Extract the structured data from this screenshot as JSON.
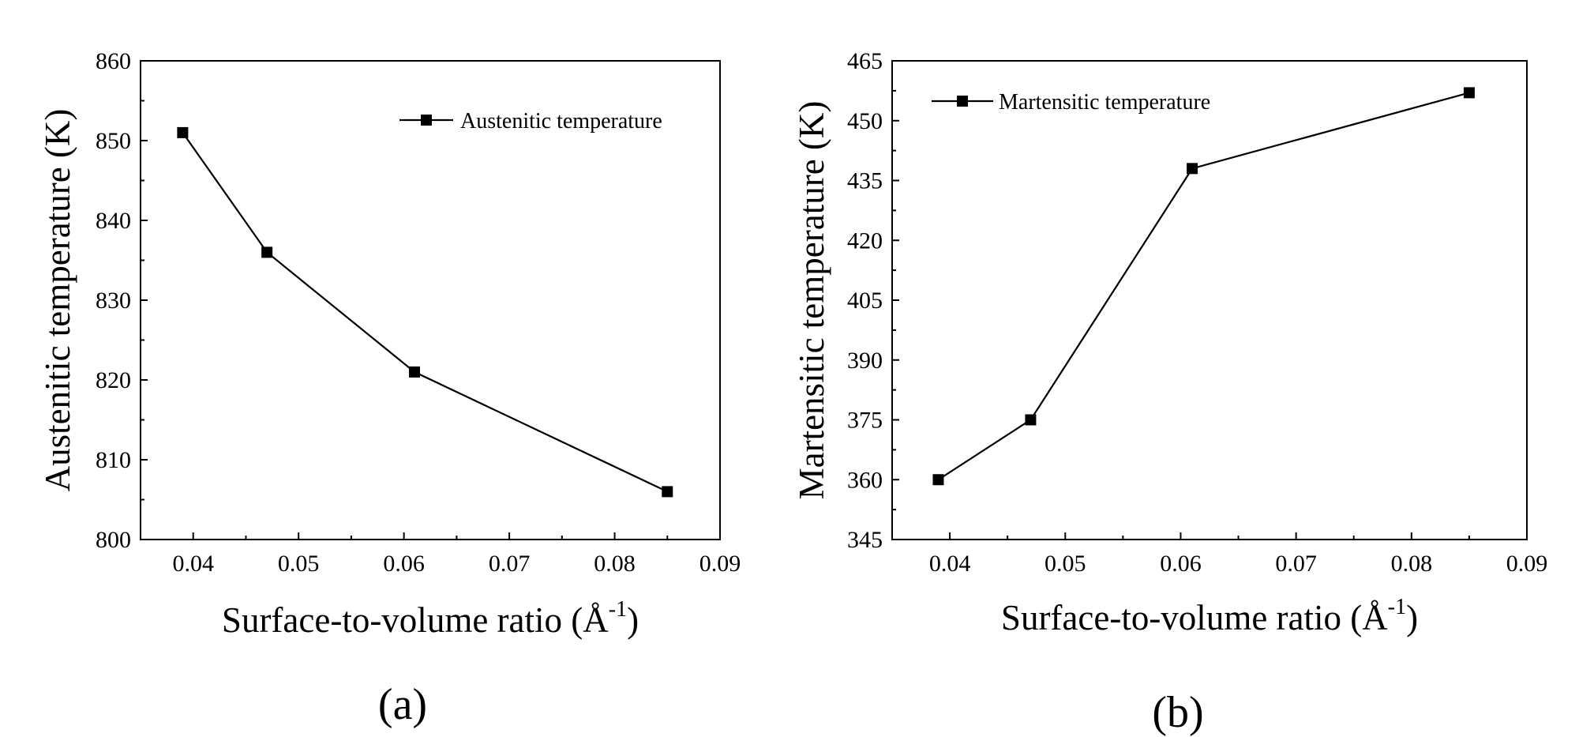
{
  "chart_data": [
    {
      "type": "line",
      "panel_label": "(a)",
      "xlabel": "Surface-to-volume ratio (Å",
      "xlabel_superscript": "-1",
      "xlabel_suffix": ")",
      "ylabel": "Austenitic temperature (K)",
      "xlim": [
        0.035,
        0.09
      ],
      "ylim": [
        800,
        860
      ],
      "xticks": [
        "0.04",
        "0.05",
        "0.06",
        "0.07",
        "0.08",
        "0.09"
      ],
      "yticks": [
        "800",
        "810",
        "820",
        "830",
        "840",
        "850",
        "860"
      ],
      "legend_position": "top-right",
      "series": [
        {
          "name": "Austenitic temperature",
          "marker": "square",
          "x": [
            0.039,
            0.047,
            0.061,
            0.085
          ],
          "y": [
            851,
            836,
            821,
            806
          ]
        }
      ]
    },
    {
      "type": "line",
      "panel_label": "(b)",
      "xlabel": "Surface-to-volume ratio (Å",
      "xlabel_superscript": "-1",
      "xlabel_suffix": ")",
      "ylabel": "Martensitic temperature (K)",
      "xlim": [
        0.035,
        0.09
      ],
      "ylim": [
        345,
        465
      ],
      "xticks": [
        "0.04",
        "0.05",
        "0.06",
        "0.07",
        "0.08",
        "0.09"
      ],
      "yticks": [
        "345",
        "360",
        "375",
        "390",
        "405",
        "420",
        "435",
        "450",
        "465"
      ],
      "legend_position": "top-left",
      "series": [
        {
          "name": "Martensitic temperature",
          "marker": "square",
          "x": [
            0.039,
            0.047,
            0.061,
            0.085
          ],
          "y": [
            360,
            375,
            438,
            457
          ]
        }
      ]
    }
  ],
  "colors": {
    "line": "#000000",
    "axis": "#000000",
    "background": "#ffffff"
  }
}
